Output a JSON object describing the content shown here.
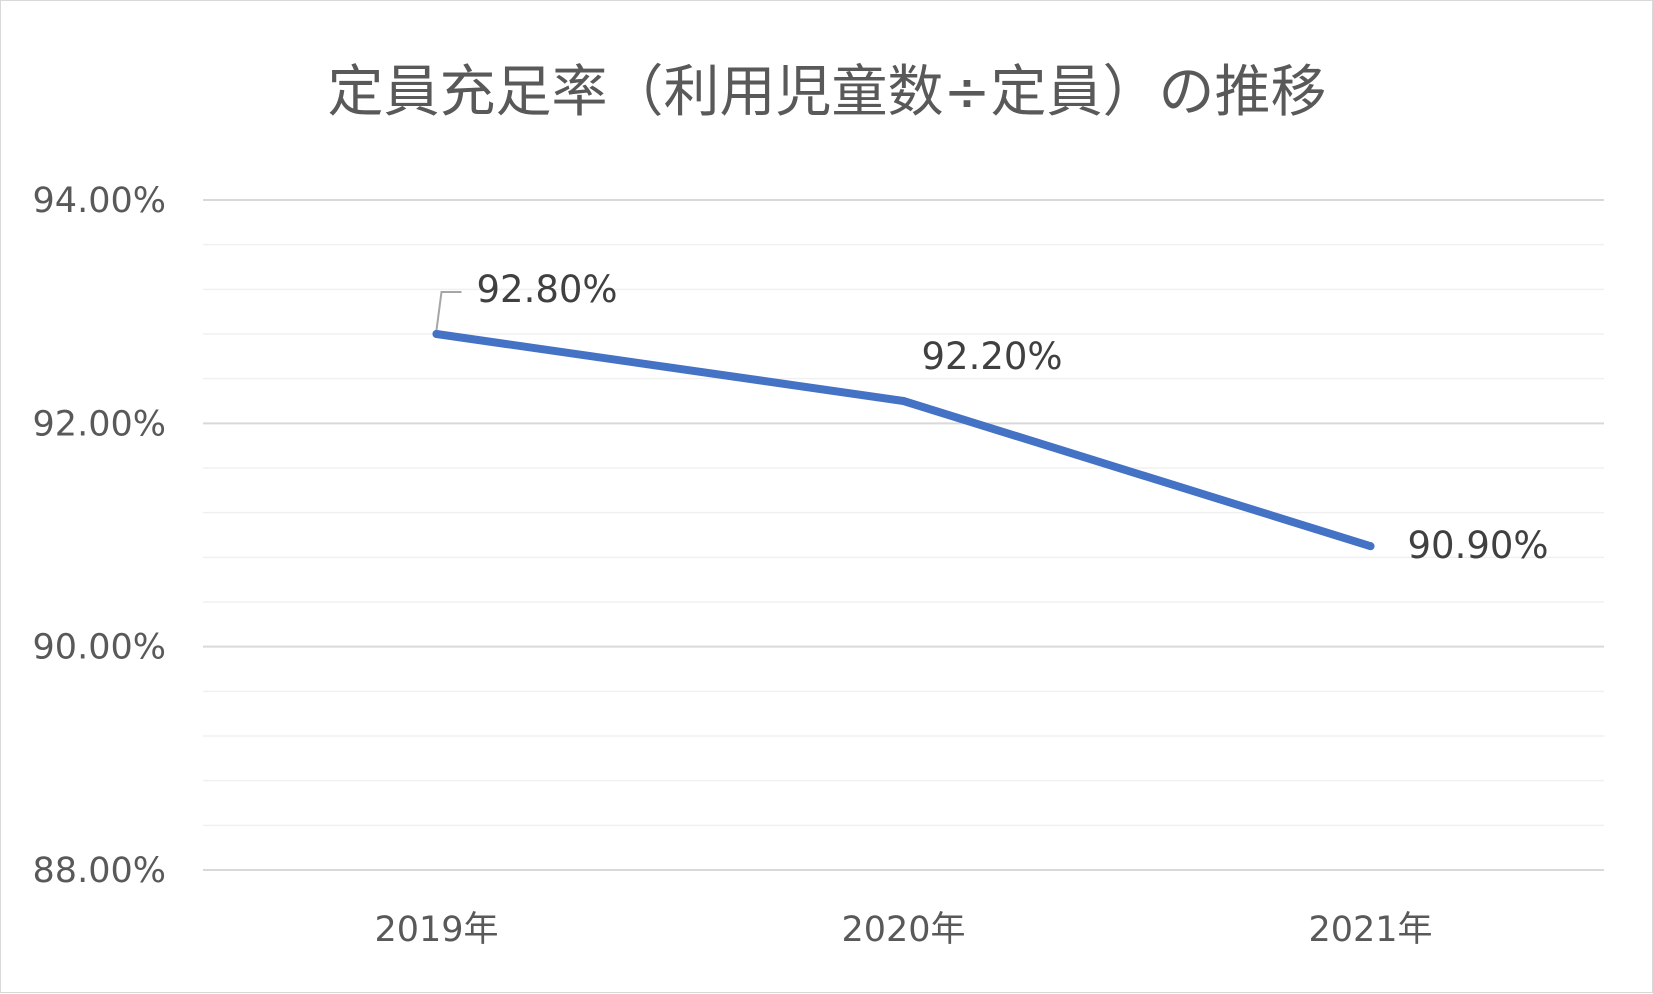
{
  "chart_data": {
    "type": "line",
    "title": "定員充足率（利用児童数÷定員）の推移",
    "categories": [
      "2019年",
      "2020年",
      "2021年"
    ],
    "series": [
      {
        "values": [
          92.8,
          92.2,
          90.9
        ],
        "data_labels": [
          "92.80%",
          "92.20%",
          "90.90%"
        ],
        "color": "#4472c4"
      }
    ],
    "ylim": [
      88,
      94
    ],
    "y_ticks": [
      {
        "value": 94,
        "label": "94.00%"
      },
      {
        "value": 92,
        "label": "92.00%"
      },
      {
        "value": 90,
        "label": "90.00%"
      },
      {
        "value": 88,
        "label": "88.00%"
      }
    ],
    "minor_grid_step": 0.4,
    "grid": true,
    "legend": "none",
    "colors": {
      "major_grid": "#d9d9d9",
      "minor_grid": "#f0f0f0",
      "text": "#595959",
      "leader_line": "#a6a6a6"
    }
  }
}
